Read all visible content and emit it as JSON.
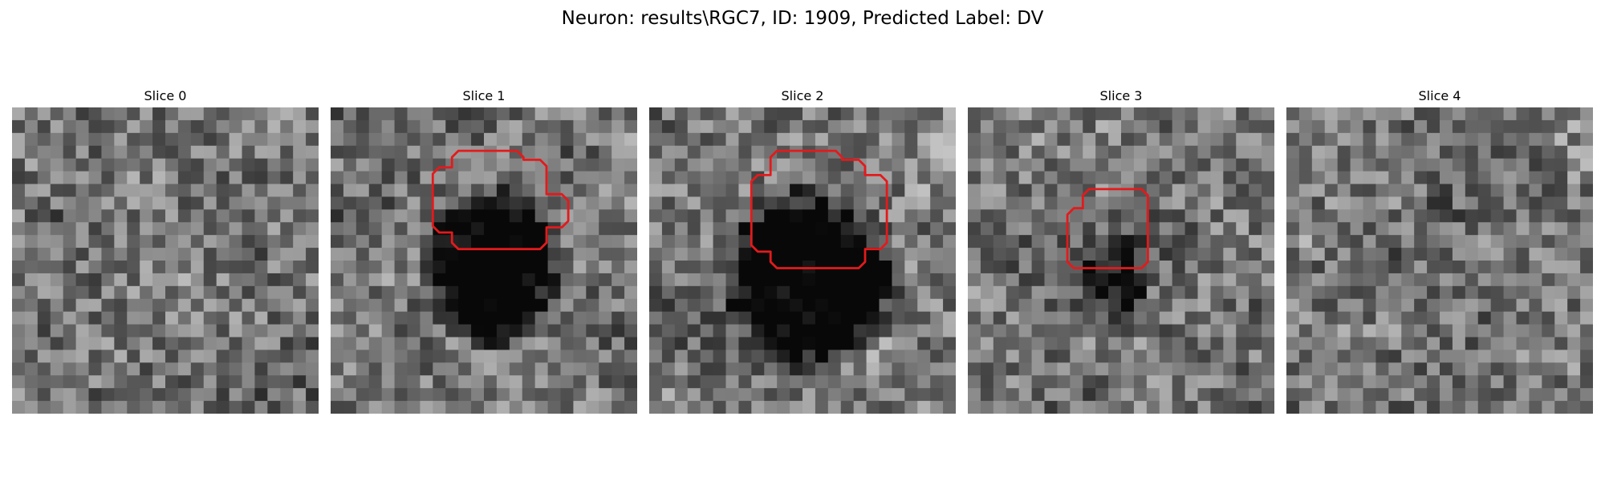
{
  "figure": {
    "title": "Neuron: results\\RGC7, ID: 1909, Predicted Label: DV",
    "colormap": "gray",
    "grid_size": 24,
    "contour_color": "#e31a1c",
    "slices": [
      {
        "title": "Slice 0",
        "has_roi": false
      },
      {
        "title": "Slice 1",
        "has_roi": true
      },
      {
        "title": "Slice 2",
        "has_roi": true
      },
      {
        "title": "Slice 3",
        "has_roi": true
      },
      {
        "title": "Slice 4",
        "has_roi": false
      }
    ]
  }
}
